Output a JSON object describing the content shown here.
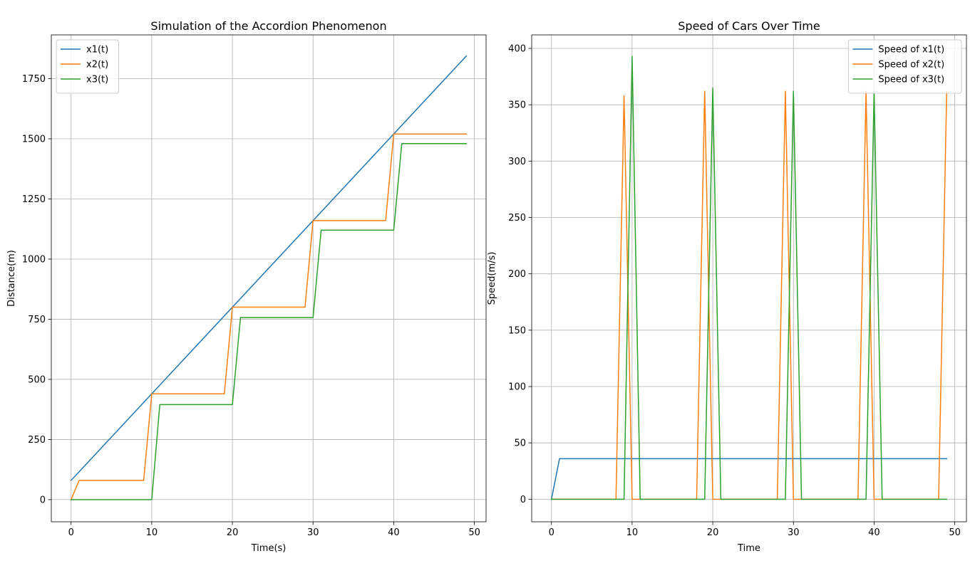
{
  "chart_data": [
    {
      "type": "line",
      "title": "Simulation of the Accordion Phenomenon",
      "xlabel": "Time(s)",
      "ylabel": "Distance(m)",
      "xlim": [
        -2.45,
        51.45
      ],
      "ylim": [
        -92,
        1932
      ],
      "xticks": [
        0,
        10,
        20,
        30,
        40,
        50
      ],
      "xtick_labels": [
        "0",
        "10",
        "20",
        "30",
        "40",
        "50"
      ],
      "yticks": [
        0,
        250,
        500,
        750,
        1000,
        1250,
        1500,
        1750
      ],
      "ytick_labels": [
        "0",
        "250",
        "500",
        "750",
        "1000",
        "1250",
        "1500",
        "1750"
      ],
      "grid": true,
      "legend_position": "top-left",
      "series": [
        {
          "name": "x1(t)",
          "color": "#1f77b4",
          "points": [
            [
              0,
              80
            ],
            [
              49,
              1844
            ]
          ]
        },
        {
          "name": "x2(t)",
          "color": "#ff7f0e",
          "points": [
            [
              0,
              0
            ],
            [
              1,
              80
            ],
            [
              9,
              80
            ],
            [
              10,
              440
            ],
            [
              19,
              440
            ],
            [
              20,
              800
            ],
            [
              29,
              800
            ],
            [
              30,
              1160
            ],
            [
              39,
              1160
            ],
            [
              40,
              1520
            ],
            [
              49,
              1520
            ]
          ]
        },
        {
          "name": "x3(t)",
          "color": "#2ca02c",
          "points": [
            [
              0,
              0
            ],
            [
              10,
              0
            ],
            [
              11,
              395
            ],
            [
              20,
              395
            ],
            [
              21,
              757
            ],
            [
              30,
              757
            ],
            [
              31,
              1120
            ],
            [
              40,
              1120
            ],
            [
              41,
              1480
            ],
            [
              49,
              1480
            ]
          ]
        }
      ]
    },
    {
      "type": "line",
      "title": "Speed of Cars Over Time",
      "xlabel": "Time",
      "ylabel": "Speed(m/s)",
      "xlim": [
        -2.45,
        51.45
      ],
      "ylim": [
        -20,
        412
      ],
      "xticks": [
        0,
        10,
        20,
        30,
        40,
        50
      ],
      "xtick_labels": [
        "0",
        "10",
        "20",
        "30",
        "40",
        "50"
      ],
      "yticks": [
        0,
        50,
        100,
        150,
        200,
        250,
        300,
        350,
        400
      ],
      "ytick_labels": [
        "0",
        "50",
        "100",
        "150",
        "200",
        "250",
        "300",
        "350",
        "400"
      ],
      "grid": true,
      "legend_position": "top-right",
      "series": [
        {
          "name": "Speed of x1(t)",
          "color": "#1f77b4",
          "points": [
            [
              0,
              0
            ],
            [
              1,
              36
            ],
            [
              49,
              36
            ]
          ]
        },
        {
          "name": "Speed of x2(t)",
          "color": "#ff7f0e",
          "points": [
            [
              0,
              0
            ],
            [
              8,
              0
            ],
            [
              9,
              358
            ],
            [
              10,
              0
            ],
            [
              18,
              0
            ],
            [
              19,
              362
            ],
            [
              20,
              0
            ],
            [
              28,
              0
            ],
            [
              29,
              362
            ],
            [
              30,
              0
            ],
            [
              38,
              0
            ],
            [
              39,
              362
            ],
            [
              40,
              0
            ],
            [
              48,
              0
            ],
            [
              49,
              362
            ]
          ]
        },
        {
          "name": "Speed of x3(t)",
          "color": "#2ca02c",
          "points": [
            [
              0,
              0
            ],
            [
              9,
              0
            ],
            [
              10,
              393
            ],
            [
              11,
              0
            ],
            [
              19,
              0
            ],
            [
              20,
              365
            ],
            [
              21,
              0
            ],
            [
              29,
              0
            ],
            [
              30,
              362
            ],
            [
              31,
              0
            ],
            [
              39,
              0
            ],
            [
              40,
              362
            ],
            [
              41,
              0
            ],
            [
              49,
              0
            ]
          ]
        }
      ]
    }
  ]
}
